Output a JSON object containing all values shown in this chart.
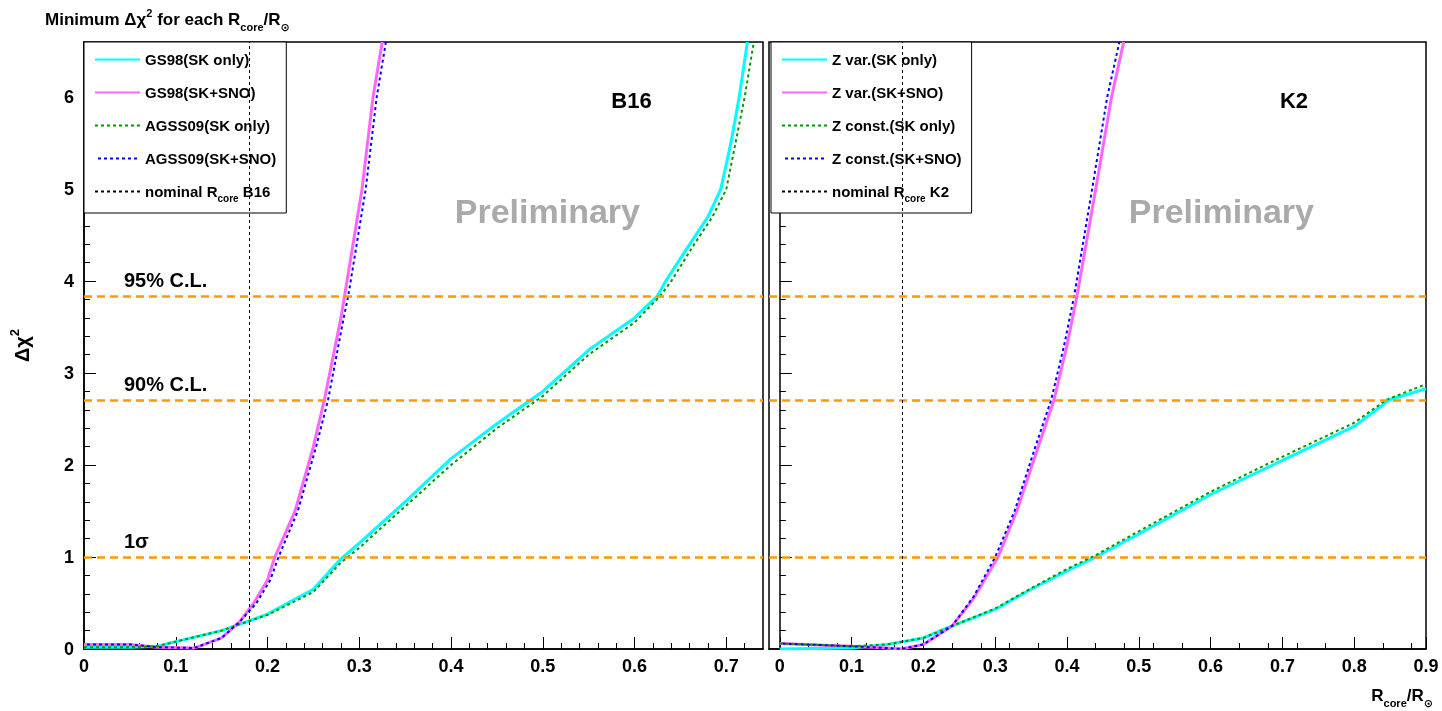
{
  "chart_data": [
    {
      "type": "line",
      "title": "Minimum Δχ$^{2}$ for each R$_{core}$/R$_{⊙}$",
      "ylabel": "Δχ$^{2}$",
      "annotations": [
        "B16",
        "Preliminary"
      ],
      "legend": "top left",
      "xlim": [
        0,
        0.74
      ],
      "xticks": [
        0,
        0.1,
        0.2,
        0.3,
        0.4,
        0.5,
        0.6,
        0.7
      ],
      "ylim": [
        0,
        6.6
      ],
      "yticks": [
        0,
        1,
        2,
        3,
        4,
        5,
        6
      ],
      "series": [
        {
          "name": "GS98(SK only)",
          "color": "#00ffff",
          "line_style": "solid",
          "x": [
            0,
            0.05,
            0.08,
            0.1,
            0.15,
            0.17,
            0.2,
            0.25,
            0.28,
            0.3,
            0.35,
            0.4,
            0.45,
            0.5,
            0.55,
            0.6,
            0.625,
            0.634,
            0.66,
            0.68,
            0.694,
            0.705,
            0.714,
            0.723
          ],
          "values": [
            0.02,
            0.02,
            0.03,
            0.08,
            0.2,
            0.27,
            0.38,
            0.65,
            0.98,
            1.15,
            1.6,
            2.07,
            2.45,
            2.8,
            3.25,
            3.6,
            3.84,
            4.0,
            4.4,
            4.7,
            5.0,
            5.5,
            6.0,
            6.6
          ]
        },
        {
          "name": "GS98(SK+SNO)",
          "color": "#ff66ff",
          "line_style": "solid",
          "x": [
            0,
            0.05,
            0.08,
            0.12,
            0.15,
            0.17,
            0.185,
            0.2,
            0.208,
            0.23,
            0.25,
            0.262,
            0.28,
            0.284,
            0.303,
            0.315,
            0.325
          ],
          "values": [
            0.05,
            0.05,
            0.02,
            0.01,
            0.12,
            0.3,
            0.5,
            0.75,
            1.0,
            1.5,
            2.2,
            2.71,
            3.6,
            3.84,
            5.0,
            6.0,
            6.6
          ]
        },
        {
          "name": "AGSS09(SK only)",
          "color": "#009900",
          "line_style": "dotted",
          "x": [
            0,
            0.05,
            0.08,
            0.1,
            0.15,
            0.17,
            0.2,
            0.25,
            0.28,
            0.3,
            0.35,
            0.4,
            0.45,
            0.5,
            0.55,
            0.6,
            0.628,
            0.64,
            0.665,
            0.685,
            0.7,
            0.71,
            0.72,
            0.73
          ],
          "values": [
            0.02,
            0.02,
            0.03,
            0.08,
            0.2,
            0.27,
            0.37,
            0.62,
            0.94,
            1.1,
            1.55,
            2.0,
            2.4,
            2.75,
            3.2,
            3.55,
            3.84,
            4.0,
            4.4,
            4.7,
            5.0,
            5.5,
            6.0,
            6.6
          ]
        },
        {
          "name": "AGSS09(SK+SNO)",
          "color": "#0000ff",
          "line_style": "dotted",
          "x": [
            0,
            0.05,
            0.08,
            0.12,
            0.15,
            0.17,
            0.188,
            0.203,
            0.212,
            0.233,
            0.253,
            0.266,
            0.283,
            0.288,
            0.307,
            0.319,
            0.329
          ],
          "values": [
            0.05,
            0.05,
            0.02,
            0.01,
            0.12,
            0.3,
            0.5,
            0.75,
            1.0,
            1.5,
            2.2,
            2.71,
            3.6,
            3.84,
            5.0,
            6.0,
            6.6
          ]
        }
      ],
      "ref_lines": [
        {
          "axis": "y",
          "value": 3.84,
          "label": "95% C.L.",
          "color": "#ff9900",
          "line_style": "dashed"
        },
        {
          "axis": "y",
          "value": 2.71,
          "label": "90% C.L.",
          "color": "#ff9900",
          "line_style": "dashed"
        },
        {
          "axis": "y",
          "value": 1,
          "label": "1σ",
          "color": "#ff9900",
          "line_style": "dashed"
        },
        {
          "axis": "x",
          "value": 0.183,
          "label": "nominal R$_{core}$ B16",
          "color": "#000000",
          "line_style": "dotted"
        }
      ]
    },
    {
      "type": "line",
      "xlabel": "R$_{core}$/R$_{⊙}$",
      "annotations": [
        "K2",
        "Preliminary"
      ],
      "legend": "top left",
      "tick_labels": "x",
      "xlim": [
        -0.015,
        0.9
      ],
      "xticks": [
        0,
        0.1,
        0.2,
        0.3,
        0.4,
        0.5,
        0.6,
        0.7,
        0.8,
        0.9
      ],
      "ylim": [
        0,
        6.6
      ],
      "yticks": [
        0,
        1,
        2,
        3,
        4,
        5,
        6
      ],
      "series": [
        {
          "name": "Z var.(SK only)",
          "color": "#00ffff",
          "line_style": "solid",
          "x": [
            0,
            0.1,
            0.15,
            0.2,
            0.24,
            0.3,
            0.35,
            0.4,
            0.44,
            0.5,
            0.6,
            0.7,
            0.8,
            0.849,
            0.9
          ],
          "values": [
            0.0,
            0.01,
            0.05,
            0.12,
            0.25,
            0.43,
            0.65,
            0.85,
            1.0,
            1.25,
            1.68,
            2.05,
            2.42,
            2.71,
            2.83
          ]
        },
        {
          "name": "Z var.(SK+SNO)",
          "color": "#ff66ff",
          "line_style": "solid",
          "x": [
            0,
            0.1,
            0.15,
            0.17,
            0.2,
            0.24,
            0.27,
            0.304,
            0.33,
            0.36,
            0.382,
            0.4,
            0.414,
            0.44,
            0.462,
            0.479
          ],
          "values": [
            0.06,
            0.03,
            0.01,
            0.0,
            0.05,
            0.25,
            0.55,
            1.0,
            1.5,
            2.2,
            2.71,
            3.3,
            3.84,
            5.0,
            6.0,
            6.6
          ]
        },
        {
          "name": "Z const.(SK only)",
          "color": "#009900",
          "line_style": "dotted",
          "x": [
            0,
            0.1,
            0.15,
            0.2,
            0.24,
            0.3,
            0.35,
            0.4,
            0.44,
            0.5,
            0.6,
            0.7,
            0.8,
            0.845,
            0.9
          ],
          "values": [
            0.06,
            0.03,
            0.05,
            0.12,
            0.25,
            0.44,
            0.66,
            0.87,
            1.02,
            1.28,
            1.71,
            2.09,
            2.46,
            2.71,
            2.88
          ]
        },
        {
          "name": "Z const.(SK+SNO)",
          "color": "#0000ff",
          "line_style": "dotted",
          "x": [
            0,
            0.1,
            0.15,
            0.17,
            0.2,
            0.24,
            0.27,
            0.3,
            0.327,
            0.356,
            0.378,
            0.396,
            0.41,
            0.435,
            0.456,
            0.473
          ],
          "values": [
            0.06,
            0.03,
            0.01,
            0.0,
            0.05,
            0.25,
            0.57,
            1.0,
            1.5,
            2.2,
            2.71,
            3.3,
            3.84,
            5.0,
            6.0,
            6.6
          ]
        }
      ],
      "ref_lines": [
        {
          "axis": "y",
          "value": 3.84,
          "color": "#ff9900",
          "line_style": "dashed"
        },
        {
          "axis": "y",
          "value": 2.71,
          "color": "#ff9900",
          "line_style": "dashed"
        },
        {
          "axis": "y",
          "value": 1,
          "color": "#ff9900",
          "line_style": "dashed"
        },
        {
          "axis": "x",
          "value": 0.168,
          "label": "nominal R$_{core}$ K2",
          "color": "#000000",
          "line_style": "dotted"
        }
      ]
    }
  ]
}
